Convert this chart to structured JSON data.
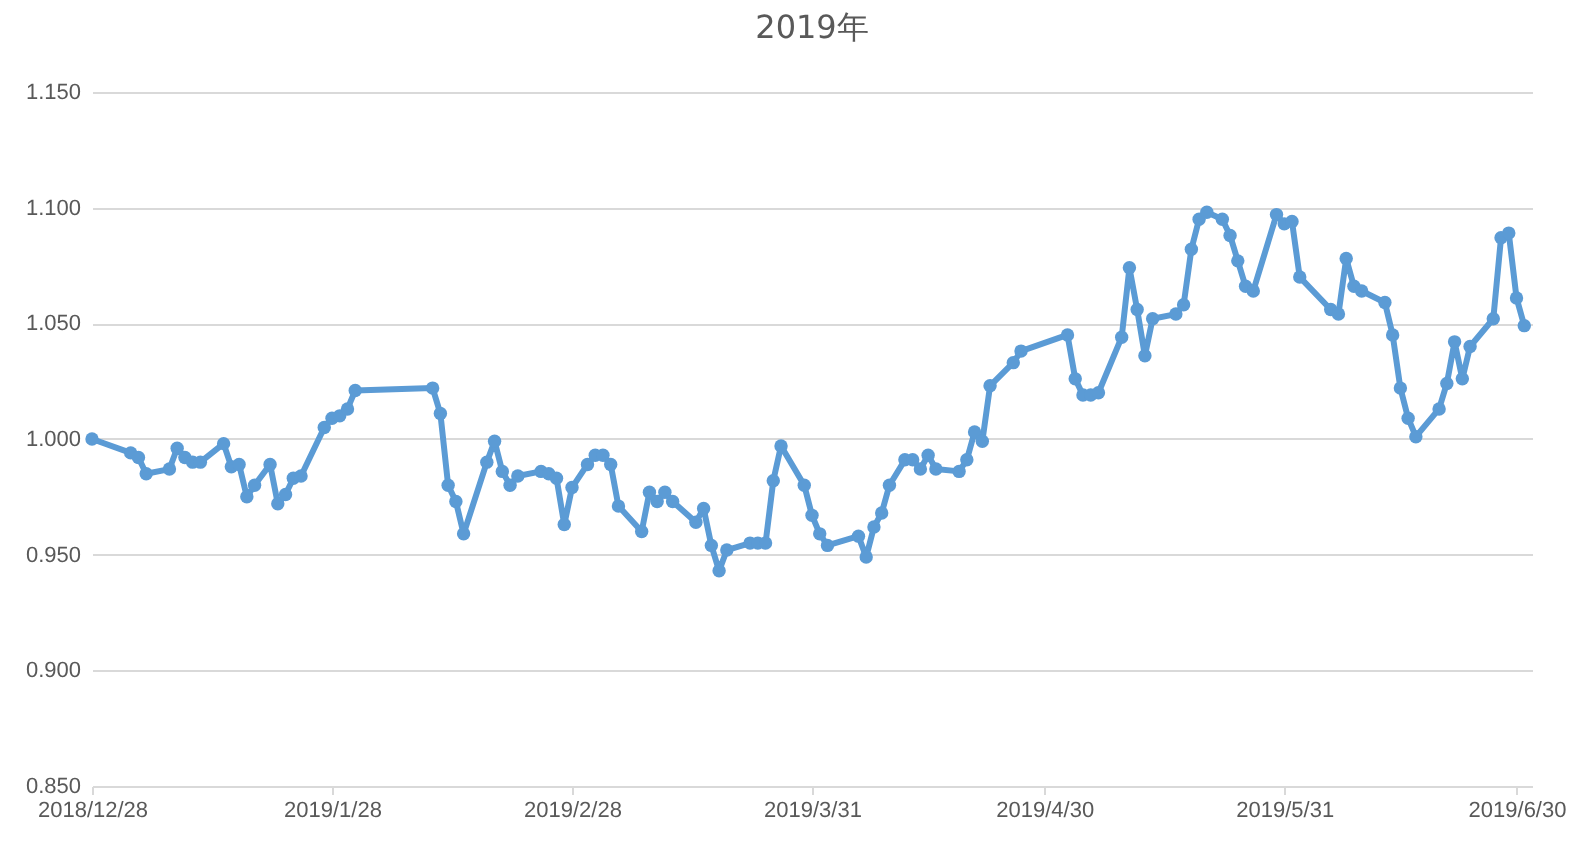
{
  "chart_data": {
    "type": "line",
    "title": "2019年",
    "x": [
      "2018-12-28",
      "2019-01-02",
      "2019-01-03",
      "2019-01-04",
      "2019-01-07",
      "2019-01-08",
      "2019-01-09",
      "2019-01-10",
      "2019-01-11",
      "2019-01-14",
      "2019-01-15",
      "2019-01-16",
      "2019-01-17",
      "2019-01-18",
      "2019-01-20",
      "2019-01-21",
      "2019-01-22",
      "2019-01-23",
      "2019-01-24",
      "2019-01-27",
      "2019-01-28",
      "2019-01-29",
      "2019-01-30",
      "2019-01-31",
      "2019-02-10",
      "2019-02-11",
      "2019-02-12",
      "2019-02-13",
      "2019-02-14",
      "2019-02-17",
      "2019-02-18",
      "2019-02-19",
      "2019-02-20",
      "2019-02-21",
      "2019-02-24",
      "2019-02-25",
      "2019-02-26",
      "2019-02-27",
      "2019-02-28",
      "2019-03-02",
      "2019-03-03",
      "2019-03-04",
      "2019-03-05",
      "2019-03-06",
      "2019-03-09",
      "2019-03-10",
      "2019-03-11",
      "2019-03-12",
      "2019-03-13",
      "2019-03-16",
      "2019-03-17",
      "2019-03-18",
      "2019-03-19",
      "2019-03-20",
      "2019-03-23",
      "2019-03-24",
      "2019-03-25",
      "2019-03-26",
      "2019-03-27",
      "2019-03-30",
      "2019-03-31",
      "2019-04-01",
      "2019-04-02",
      "2019-04-06",
      "2019-04-07",
      "2019-04-08",
      "2019-04-09",
      "2019-04-10",
      "2019-04-12",
      "2019-04-13",
      "2019-04-14",
      "2019-04-15",
      "2019-04-16",
      "2019-04-19",
      "2019-04-20",
      "2019-04-21",
      "2019-04-22",
      "2019-04-23",
      "2019-04-26",
      "2019-04-27",
      "2019-05-03",
      "2019-05-04",
      "2019-05-05",
      "2019-05-06",
      "2019-05-07",
      "2019-05-10",
      "2019-05-11",
      "2019-05-12",
      "2019-05-13",
      "2019-05-14",
      "2019-05-17",
      "2019-05-18",
      "2019-05-19",
      "2019-05-20",
      "2019-05-21",
      "2019-05-23",
      "2019-05-24",
      "2019-05-25",
      "2019-05-26",
      "2019-05-27",
      "2019-05-30",
      "2019-05-31",
      "2019-06-01",
      "2019-06-02",
      "2019-06-06",
      "2019-06-07",
      "2019-06-08",
      "2019-06-09",
      "2019-06-10",
      "2019-06-13",
      "2019-06-14",
      "2019-06-15",
      "2019-06-16",
      "2019-06-17",
      "2019-06-20",
      "2019-06-21",
      "2019-06-22",
      "2019-06-23",
      "2019-06-24",
      "2019-06-27",
      "2019-06-28",
      "2019-06-29",
      "2019-06-30",
      "2019-07-01"
    ],
    "series": [
      {
        "color": "#5b9bd5",
        "values": [
          1.0,
          0.994,
          0.992,
          0.985,
          0.987,
          0.996,
          0.992,
          0.99,
          0.99,
          0.998,
          0.988,
          0.989,
          0.975,
          0.98,
          0.989,
          0.972,
          0.976,
          0.983,
          0.984,
          1.005,
          1.009,
          1.01,
          1.013,
          1.021,
          1.022,
          1.011,
          0.98,
          0.973,
          0.959,
          0.99,
          0.999,
          0.986,
          0.98,
          0.984,
          0.986,
          0.985,
          0.983,
          0.963,
          0.979,
          0.989,
          0.993,
          0.993,
          0.989,
          0.971,
          0.96,
          0.977,
          0.973,
          0.977,
          0.973,
          0.964,
          0.97,
          0.954,
          0.943,
          0.952,
          0.955,
          0.955,
          0.955,
          0.982,
          0.997,
          0.98,
          0.967,
          0.959,
          0.954,
          0.958,
          0.949,
          0.962,
          0.968,
          0.98,
          0.991,
          0.991,
          0.987,
          0.993,
          0.987,
          0.986,
          0.991,
          1.003,
          0.999,
          1.023,
          1.033,
          1.038,
          1.045,
          1.026,
          1.019,
          1.019,
          1.02,
          1.044,
          1.074,
          1.056,
          1.036,
          1.052,
          1.054,
          1.058,
          1.082,
          1.095,
          1.098,
          1.095,
          1.088,
          1.077,
          1.066,
          1.064,
          1.097,
          1.093,
          1.094,
          1.07,
          1.056,
          1.054,
          1.078,
          1.066,
          1.064,
          1.059,
          1.045,
          1.022,
          1.009,
          1.001,
          1.013,
          1.024,
          1.042,
          1.026,
          1.04,
          1.052,
          1.087,
          1.089,
          1.061,
          1.049
        ]
      }
    ],
    "xlim": [
      "2018-12-28",
      "2019-07-02"
    ],
    "xticks": [
      {
        "value": "2018-12-28",
        "label": "2018/12/28"
      },
      {
        "value": "2019-01-28",
        "label": "2019/1/28"
      },
      {
        "value": "2019-02-28",
        "label": "2019/2/28"
      },
      {
        "value": "2019-03-31",
        "label": "2019/3/31"
      },
      {
        "value": "2019-04-30",
        "label": "2019/4/30"
      },
      {
        "value": "2019-05-31",
        "label": "2019/5/31"
      },
      {
        "value": "2019-06-30",
        "label": "2019/6/30"
      }
    ],
    "ylim": [
      0.85,
      1.15
    ],
    "yticks": [
      {
        "value": 0.85,
        "label": "0.850"
      },
      {
        "value": 0.9,
        "label": "0.900"
      },
      {
        "value": 0.95,
        "label": "0.950"
      },
      {
        "value": 1.0,
        "label": "1.000"
      },
      {
        "value": 1.05,
        "label": "1.050"
      },
      {
        "value": 1.1,
        "label": "1.100"
      },
      {
        "value": 1.15,
        "label": "1.150"
      }
    ],
    "grid": "y",
    "marker": "circle",
    "line_style": "solid"
  }
}
